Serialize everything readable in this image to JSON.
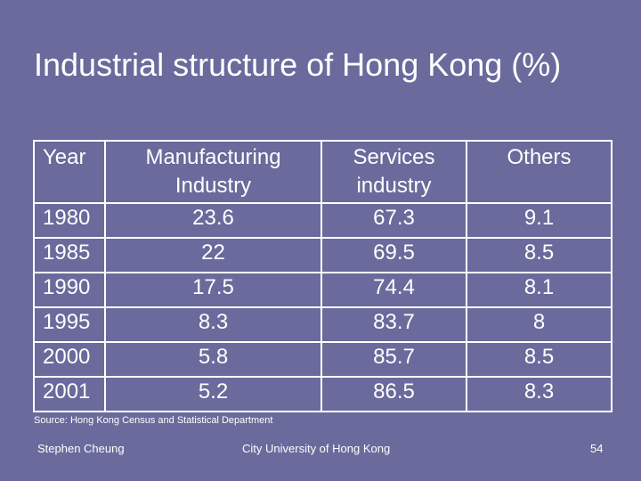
{
  "title": "Industrial structure of Hong Kong (%)",
  "table": {
    "headers": {
      "year": "Year",
      "manufacturing": [
        "Manufacturing",
        "Industry"
      ],
      "services": [
        "Services",
        "industry"
      ],
      "others": "Others"
    },
    "rows": [
      {
        "year": "1980",
        "manufacturing": "23.6",
        "services": "67.3",
        "others": "9.1"
      },
      {
        "year": "1985",
        "manufacturing": "22",
        "services": "69.5",
        "others": "8.5"
      },
      {
        "year": "1990",
        "manufacturing": "17.5",
        "services": "74.4",
        "others": "8.1"
      },
      {
        "year": "1995",
        "manufacturing": "8.3",
        "services": "83.7",
        "others": "8"
      },
      {
        "year": "2000",
        "manufacturing": "5.8",
        "services": "85.7",
        "others": "8.5"
      },
      {
        "year": "2001",
        "manufacturing": "5.2",
        "services": "86.5",
        "others": "8.3"
      }
    ]
  },
  "source": "Source: Hong Kong Census and Statistical Department",
  "footer": {
    "author": "Stephen Cheung",
    "institution": "City University of Hong Kong",
    "page_number": "54"
  }
}
